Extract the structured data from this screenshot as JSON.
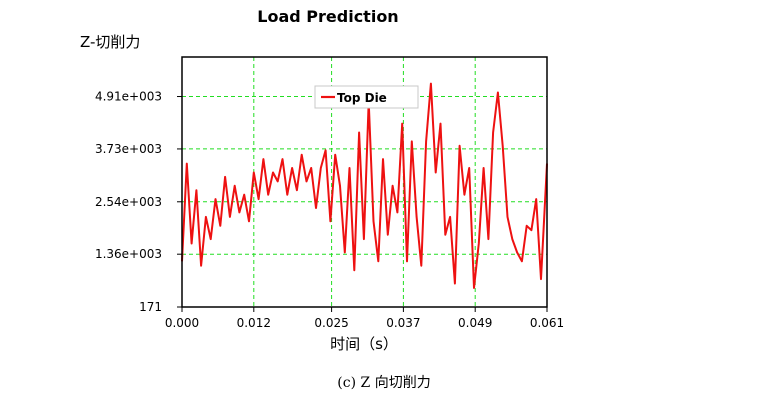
{
  "figure": {
    "caption": "(c) Z 向切削力"
  },
  "chart_data": {
    "type": "line",
    "title": "Load Prediction",
    "ylabel": "Z-切削力",
    "xlabel": "时间（s）",
    "xlim": [
      0.0,
      0.061
    ],
    "ylim": [
      171,
      5800
    ],
    "x_ticks": [
      "0.000",
      "0.012",
      "0.025",
      "0.037",
      "0.049",
      "0.061"
    ],
    "y_ticks": [
      "171",
      "1.36e+003",
      "2.54e+003",
      "3.73e+003",
      "4.91e+003"
    ],
    "grid": true,
    "legend": {
      "position": "top-center",
      "entries": [
        "Top Die"
      ]
    },
    "colors": {
      "line": "#ee1111",
      "grid": "#22dd22",
      "frame": "#000000"
    },
    "series": [
      {
        "name": "Top Die",
        "x": [
          0.0,
          0.0008,
          0.0016,
          0.0024,
          0.0032,
          0.004,
          0.0048,
          0.0056,
          0.0064,
          0.0072,
          0.008,
          0.0088,
          0.0096,
          0.0104,
          0.0112,
          0.012,
          0.0128,
          0.0136,
          0.0144,
          0.0152,
          0.016,
          0.0168,
          0.0176,
          0.0184,
          0.0192,
          0.02,
          0.0208,
          0.0216,
          0.0224,
          0.0232,
          0.024,
          0.0248,
          0.0256,
          0.0264,
          0.0272,
          0.028,
          0.0288,
          0.0296,
          0.0304,
          0.0312,
          0.032,
          0.0328,
          0.0336,
          0.0344,
          0.0352,
          0.036,
          0.0368,
          0.0376,
          0.0384,
          0.0392,
          0.04,
          0.0408,
          0.0416,
          0.0424,
          0.0432,
          0.044,
          0.0448,
          0.0456,
          0.0464,
          0.0472,
          0.048,
          0.0488,
          0.0496,
          0.0504,
          0.0512,
          0.052,
          0.0528,
          0.0536,
          0.0544,
          0.0552,
          0.056,
          0.0568,
          0.0576,
          0.0584,
          0.0592,
          0.06,
          0.061
        ],
        "values": [
          1200,
          3400,
          1600,
          2800,
          1100,
          2200,
          1700,
          2600,
          2000,
          3100,
          2200,
          2900,
          2300,
          2700,
          2100,
          3200,
          2600,
          3500,
          2700,
          3200,
          3000,
          3500,
          2700,
          3300,
          2800,
          3600,
          3000,
          3300,
          2400,
          3300,
          3700,
          2100,
          3600,
          2900,
          1400,
          3300,
          1000,
          4100,
          1700,
          4800,
          2100,
          1200,
          3500,
          1800,
          2900,
          2300,
          4300,
          1200,
          3900,
          2200,
          1100,
          3900,
          5200,
          3200,
          4300,
          1800,
          2200,
          700,
          3800,
          2700,
          3300,
          600,
          1600,
          3300,
          1700,
          4100,
          5000,
          3800,
          2200,
          1700,
          1400,
          1200,
          2000,
          1900,
          2600,
          800,
          3400
        ]
      }
    ]
  }
}
